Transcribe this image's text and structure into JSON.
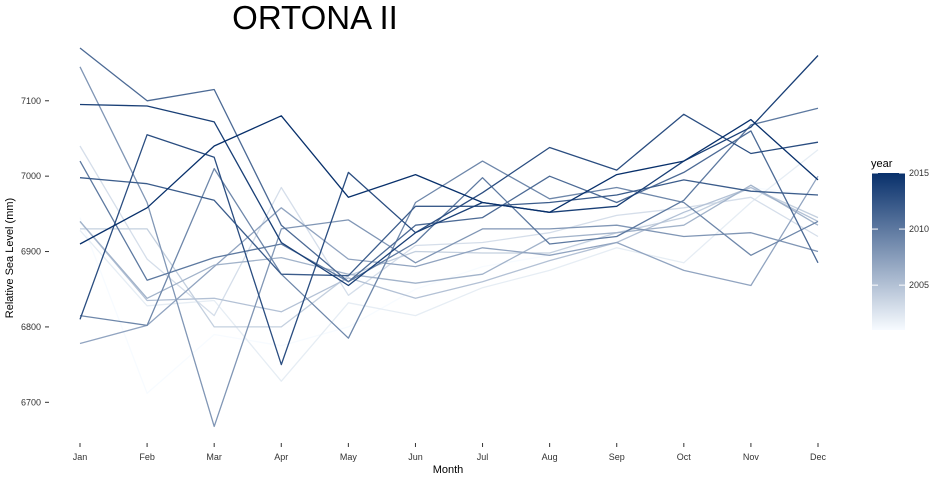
{
  "chart_data": {
    "type": "line",
    "title": "ORTONA II",
    "xlabel": "Month",
    "ylabel": "Relative Sea Level (mm)",
    "categories": [
      "Jan",
      "Feb",
      "Mar",
      "Apr",
      "May",
      "Jun",
      "Jul",
      "Aug",
      "Sep",
      "Oct",
      "Nov",
      "Dec"
    ],
    "ylim": [
      6650,
      7170
    ],
    "yticks": [
      6700,
      6800,
      6900,
      7000,
      7100
    ],
    "grid": false,
    "color_scale": {
      "title": "year",
      "min_year": 2001,
      "max_year": 2015,
      "ticks": [
        2005,
        2010,
        2015
      ],
      "low_color": "#f7fbff",
      "high_color": "#08306b",
      "placement": "right"
    },
    "series": [
      {
        "year": 2001,
        "values": [
          6945,
          6712,
          6790,
          6775,
          6800,
          6850,
          6880,
          6895,
          6925,
          6950,
          6985,
          6975
        ]
      },
      {
        "year": 2002,
        "values": [
          6928,
          6828,
          6835,
          6728,
          6832,
          6815,
          6852,
          6875,
          6905,
          6885,
          6965,
          7035
        ]
      },
      {
        "year": 2003,
        "values": [
          7040,
          6890,
          6815,
          6985,
          6842,
          6908,
          6912,
          6925,
          6948,
          6958,
          6972,
          6920
        ]
      },
      {
        "year": 2004,
        "values": [
          6930,
          6930,
          6800,
          6800,
          6868,
          6900,
          6898,
          6898,
          6925,
          6945,
          6985,
          6945
        ]
      },
      {
        "year": 2005,
        "values": [
          6940,
          6835,
          6838,
          6820,
          6865,
          6838,
          6860,
          6888,
          6912,
          6952,
          6985,
          6940
        ]
      },
      {
        "year": 2006,
        "values": [
          6940,
          6838,
          6882,
          6892,
          6870,
          6858,
          6870,
          6918,
          6925,
          6935,
          6988,
          6935
        ]
      },
      {
        "year": 2007,
        "values": [
          6778,
          6802,
          6880,
          6958,
          6890,
          6880,
          6905,
          6895,
          6912,
          6875,
          6855,
          7000
        ]
      },
      {
        "year": 2008,
        "values": [
          7145,
          6965,
          6668,
          6930,
          6942,
          6885,
          6930,
          6930,
          6935,
          6920,
          6925,
          6900
        ]
      },
      {
        "year": 2009,
        "values": [
          6815,
          6802,
          7010,
          6870,
          6785,
          6965,
          7020,
          6970,
          6985,
          6965,
          6895,
          6940
        ]
      },
      {
        "year": 2010,
        "values": [
          7020,
          6862,
          6892,
          6910,
          6860,
          6912,
          6998,
          6910,
          6920,
          6968,
          7068,
          7090
        ]
      },
      {
        "year": 2011,
        "values": [
          7170,
          7100,
          7115,
          6935,
          6860,
          6935,
          6945,
          7000,
          6965,
          7005,
          7060,
          6885
        ]
      },
      {
        "year": 2012,
        "values": [
          6998,
          6990,
          6968,
          6870,
          6868,
          6960,
          6960,
          6965,
          6975,
          6995,
          6980,
          6975
        ]
      },
      {
        "year": 2013,
        "values": [
          6810,
          7055,
          7025,
          6750,
          7005,
          6925,
          6978,
          7038,
          7008,
          7082,
          7030,
          7045
        ]
      },
      {
        "year": 2014,
        "values": [
          7095,
          7093,
          7072,
          6912,
          6855,
          6925,
          6965,
          6952,
          6960,
          7020,
          7065,
          7160
        ]
      },
      {
        "year": 2015,
        "values": [
          6910,
          6958,
          7040,
          7080,
          6972,
          7002,
          6965,
          6952,
          7002,
          7020,
          7075,
          6995
        ]
      }
    ]
  }
}
